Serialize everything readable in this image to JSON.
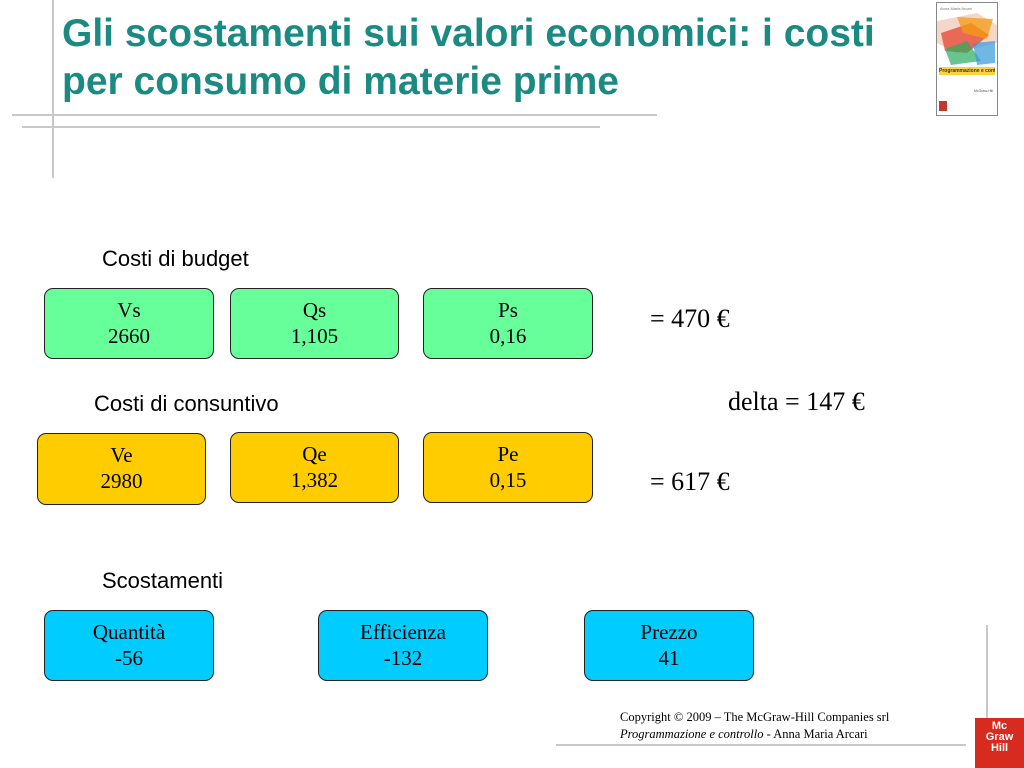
{
  "slide": {
    "title": "Gli scostamenti sui valori economici: i costi per consumo di materie prime"
  },
  "book_cover": {
    "author": "Anna Maria Arcari",
    "title": "Programmazione e controllo",
    "publisher": "McGraw-Hill",
    "colors": [
      "#e74c3c",
      "#f39c12",
      "#27ae60",
      "#3498db",
      "#ffd23a"
    ]
  },
  "budget": {
    "heading": "Costi di budget",
    "boxes": [
      {
        "label": "Vs",
        "value": "2660"
      },
      {
        "label": "Qs",
        "value": "1,105"
      },
      {
        "label": "Ps",
        "value": "0,16"
      }
    ],
    "result": "= 470 €",
    "color": "#66ff99"
  },
  "actual": {
    "heading": "Costi di consuntivo",
    "boxes": [
      {
        "label": "Ve",
        "value": "2980"
      },
      {
        "label": "Qe",
        "value": "1,382"
      },
      {
        "label": "Pe",
        "value": "0,15"
      }
    ],
    "result": "= 617 €",
    "color": "#ffcc00"
  },
  "delta": "delta = 147 €",
  "variances": {
    "heading": "Scostamenti",
    "boxes": [
      {
        "label": "Quantità",
        "value": "-56"
      },
      {
        "label": "Efficienza",
        "value": "-132"
      },
      {
        "label": "Prezzo",
        "value": "41"
      }
    ],
    "color": "#00ccff"
  },
  "footer": {
    "copyright": "Copyright © 2009 – The McGraw-Hill Companies srl",
    "book_title": "Programmazione e controllo",
    "separator": " - ",
    "author": "Anna Maria Arcari"
  },
  "logo": {
    "line1": "Mc",
    "line2": "Graw",
    "line3": "Hill"
  }
}
